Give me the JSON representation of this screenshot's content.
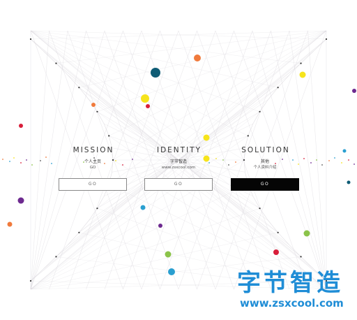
{
  "columns": [
    {
      "title": "MISSION",
      "subtitle": "个人主页",
      "note": "GO",
      "button": "GO"
    },
    {
      "title": "IDENTITY",
      "subtitle": "字节智造",
      "note": "www.zsxcool.com",
      "button": "GO"
    },
    {
      "title": "SOLUTION",
      "subtitle": "其他",
      "note": "个人资料介绍",
      "button": "GO"
    }
  ],
  "watermark": {
    "chinese": "字节智造",
    "url": "www.zsxcool.com"
  },
  "colors": {
    "line": "#d9d6dc",
    "button_dark": "#050505",
    "watermark": "#1f8dd6",
    "dot_teal_dark": "#0f5c75",
    "dot_orange": "#f07a3c",
    "dot_yellow": "#f6e41c",
    "dot_red": "#d81e3a",
    "dot_purple": "#6d2a8f",
    "dot_blue": "#2a9fd0",
    "dot_green": "#8bc34a"
  },
  "icons": [
    "string-art-hourglass",
    "color-dot"
  ]
}
